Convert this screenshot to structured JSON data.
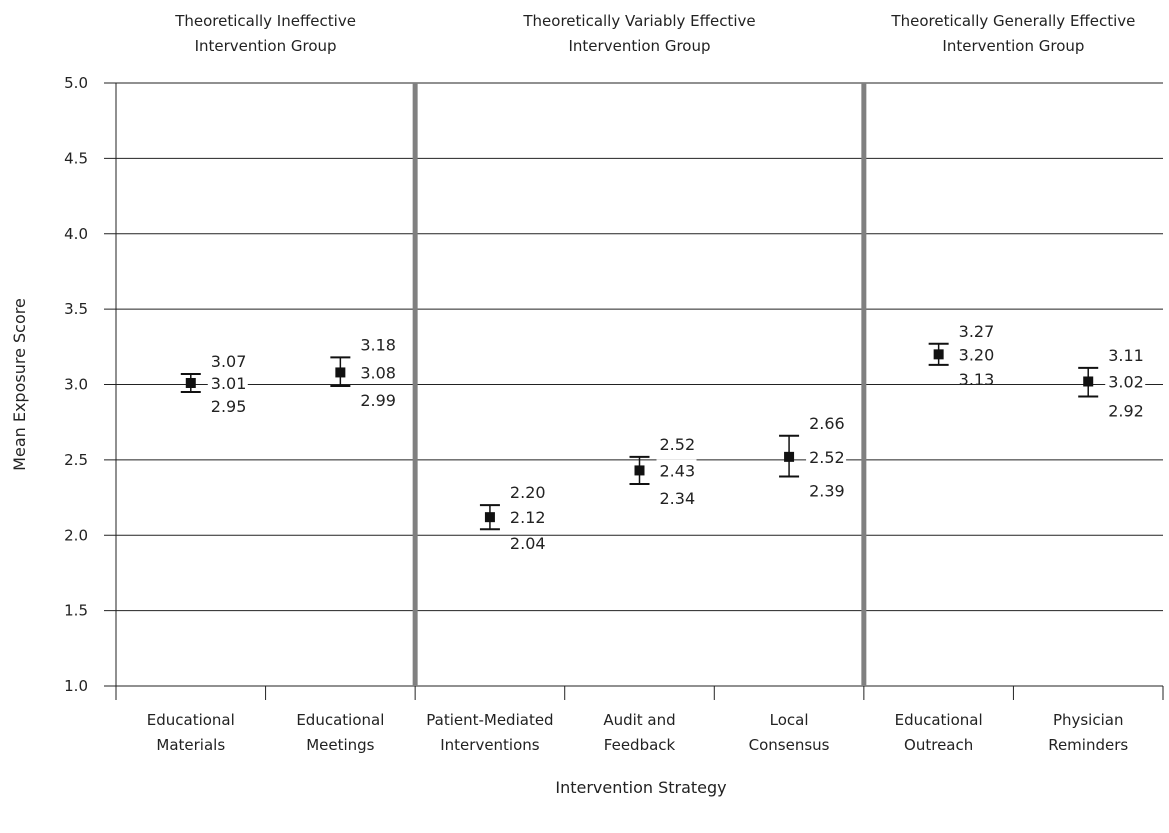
{
  "chart_data": {
    "type": "scatter",
    "xlabel": "Intervention Strategy",
    "ylabel": "Mean Exposure Score",
    "ylim": [
      1.0,
      5.0
    ],
    "yticks": [
      "1.0",
      "1.5",
      "2.0",
      "2.5",
      "3.0",
      "3.5",
      "4.0",
      "4.5",
      "5.0"
    ],
    "grid": true,
    "groups": [
      {
        "title_line1": "Theoretically Ineffective",
        "title_line2": "Intervention Group",
        "categories": [
          0,
          1
        ]
      },
      {
        "title_line1": "Theoretically Variably Effective",
        "title_line2": "Intervention Group",
        "categories": [
          2,
          3,
          4
        ]
      },
      {
        "title_line1": "Theoretically Generally Effective",
        "title_line2": "Intervention Group",
        "categories": [
          5,
          6
        ]
      }
    ],
    "categories": [
      {
        "line1": "Educational",
        "line2": "Materials"
      },
      {
        "line1": "Educational",
        "line2": "Meetings"
      },
      {
        "line1": "Patient-Mediated",
        "line2": "Interventions"
      },
      {
        "line1": "Audit and",
        "line2": "Feedback"
      },
      {
        "line1": "Local",
        "line2": "Consensus"
      },
      {
        "line1": "Educational",
        "line2": "Outreach"
      },
      {
        "line1": "Physician",
        "line2": "Reminders"
      }
    ],
    "points": [
      {
        "mean": 3.01,
        "upper": 3.07,
        "lower": 2.95,
        "mean_label": "3.01",
        "upper_label": "3.07",
        "lower_label": "2.95"
      },
      {
        "mean": 3.08,
        "upper": 3.18,
        "lower": 2.99,
        "mean_label": "3.08",
        "upper_label": "3.18",
        "lower_label": "2.99"
      },
      {
        "mean": 2.12,
        "upper": 2.2,
        "lower": 2.04,
        "mean_label": "2.12",
        "upper_label": "2.20",
        "lower_label": "2.04"
      },
      {
        "mean": 2.43,
        "upper": 2.52,
        "lower": 2.34,
        "mean_label": "2.43",
        "upper_label": "2.52",
        "lower_label": "2.34"
      },
      {
        "mean": 2.52,
        "upper": 2.66,
        "lower": 2.39,
        "mean_label": "2.52",
        "upper_label": "2.66",
        "lower_label": "2.39"
      },
      {
        "mean": 3.2,
        "upper": 3.27,
        "lower": 3.13,
        "mean_label": "3.20",
        "upper_label": "3.27",
        "lower_label": "3.13"
      },
      {
        "mean": 3.02,
        "upper": 3.11,
        "lower": 2.92,
        "mean_label": "3.02",
        "upper_label": "3.11",
        "lower_label": "2.92"
      }
    ],
    "colors": {
      "marker": "#111111",
      "grid": "#222222",
      "separator": "#808080"
    }
  }
}
